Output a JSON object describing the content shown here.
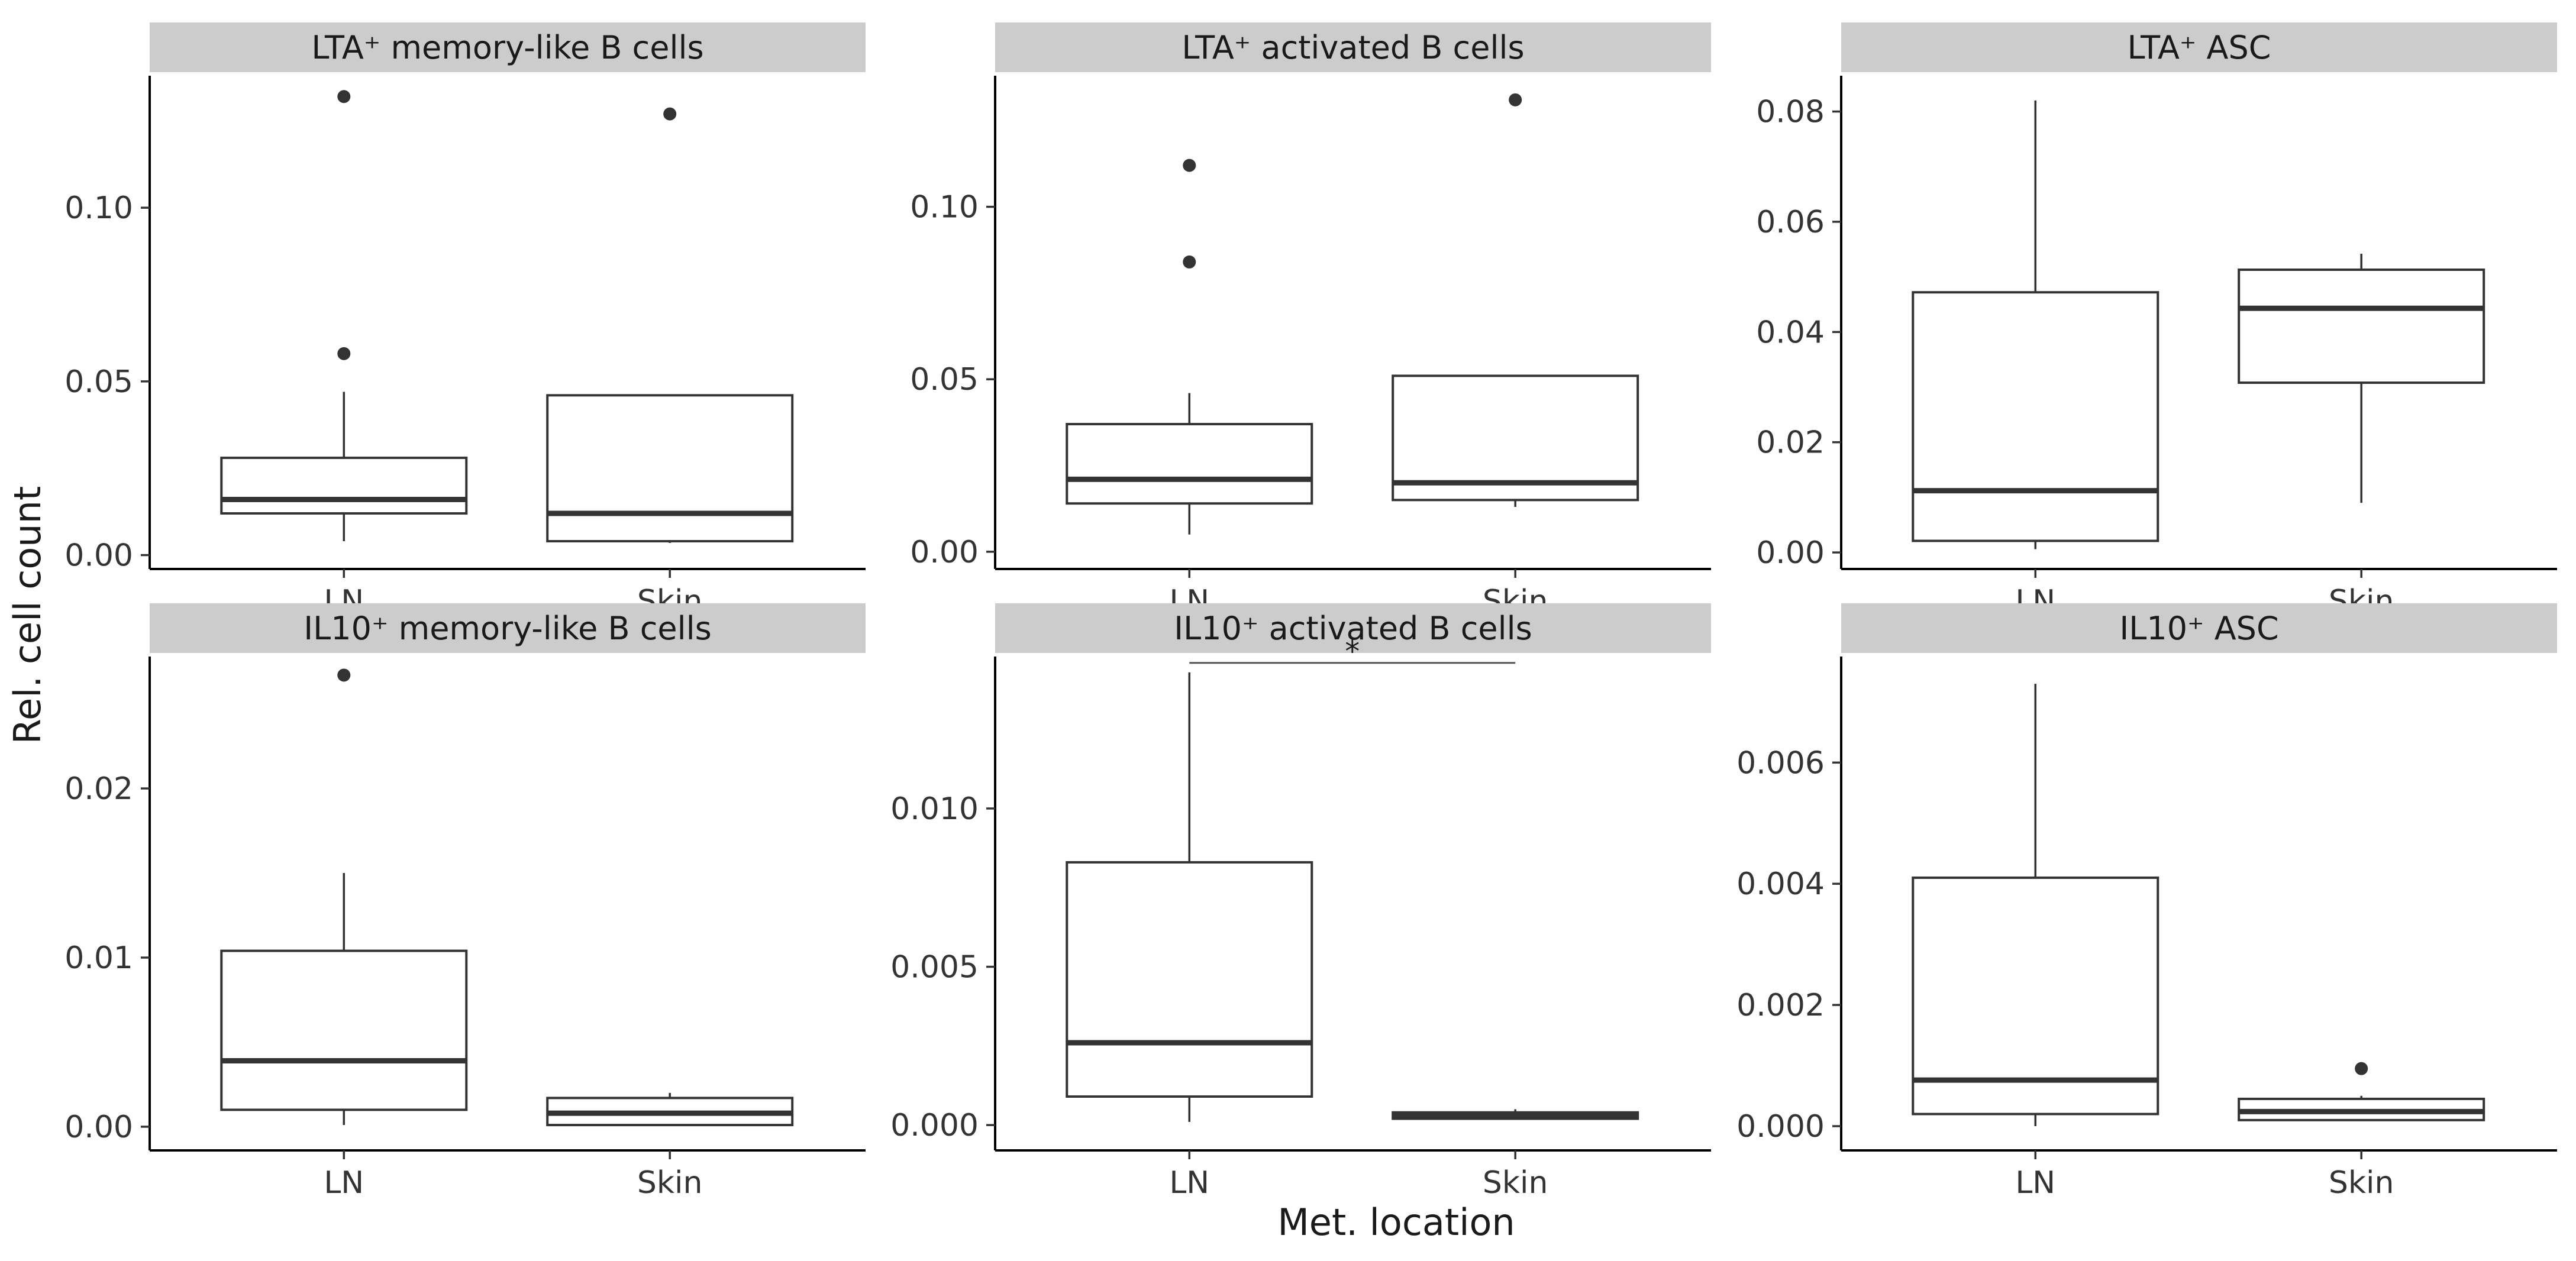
{
  "chart_data": {
    "type": "boxplot",
    "xlabel": "Met. location",
    "ylabel": "Rel. cell count",
    "categories": [
      "LN",
      "Skin"
    ],
    "panels": [
      {
        "title": "LTA⁺ memory-like B cells",
        "ylim": [
          -0.004,
          0.138
        ],
        "yticks": [
          0.0,
          0.05,
          0.1
        ],
        "ytick_labels": [
          "0.00",
          "0.05",
          "0.10"
        ],
        "boxes": [
          {
            "category": "LN",
            "whisker_low": 0.004,
            "q1": 0.012,
            "median": 0.016,
            "q3": 0.028,
            "whisker_high": 0.047,
            "outliers": [
              0.058,
              0.132
            ]
          },
          {
            "category": "Skin",
            "whisker_low": 0.0035,
            "q1": 0.004,
            "median": 0.012,
            "q3": 0.046,
            "whisker_high": 0.046,
            "outliers": [
              0.127
            ]
          }
        ]
      },
      {
        "title": "LTA⁺ activated B cells",
        "ylim": [
          -0.005,
          0.138
        ],
        "yticks": [
          0.0,
          0.05,
          0.1
        ],
        "ytick_labels": [
          "0.00",
          "0.05",
          "0.10"
        ],
        "boxes": [
          {
            "category": "LN",
            "whisker_low": 0.005,
            "q1": 0.014,
            "median": 0.021,
            "q3": 0.037,
            "whisker_high": 0.046,
            "outliers": [
              0.084,
              0.112
            ]
          },
          {
            "category": "Skin",
            "whisker_low": 0.013,
            "q1": 0.015,
            "median": 0.02,
            "q3": 0.051,
            "whisker_high": 0.051,
            "outliers": [
              0.131
            ]
          }
        ]
      },
      {
        "title": "LTA⁺ ASC",
        "ylim": [
          -0.003,
          0.0865
        ],
        "yticks": [
          0.0,
          0.02,
          0.04,
          0.06,
          0.08
        ],
        "ytick_labels": [
          "0.00",
          "0.02",
          "0.04",
          "0.06",
          "0.08"
        ],
        "boxes": [
          {
            "category": "LN",
            "whisker_low": 0.0006,
            "q1": 0.0021,
            "median": 0.0112,
            "q3": 0.0472,
            "whisker_high": 0.082,
            "outliers": []
          },
          {
            "category": "Skin",
            "whisker_low": 0.009,
            "q1": 0.0308,
            "median": 0.0443,
            "q3": 0.0513,
            "whisker_high": 0.0542,
            "outliers": []
          }
        ]
      },
      {
        "title": "IL10⁺ memory-like B cells",
        "ylim": [
          -0.0014,
          0.0278
        ],
        "yticks": [
          0.0,
          0.01,
          0.02
        ],
        "ytick_labels": [
          "0.00",
          "0.01",
          "0.02"
        ],
        "boxes": [
          {
            "category": "LN",
            "whisker_low": 0.0001,
            "q1": 0.001,
            "median": 0.0039,
            "q3": 0.0104,
            "whisker_high": 0.015,
            "outliers": [
              0.0267
            ]
          },
          {
            "category": "Skin",
            "whisker_low": 0.0001,
            "q1": 0.0001,
            "median": 0.0008,
            "q3": 0.0017,
            "whisker_high": 0.002,
            "outliers": []
          }
        ]
      },
      {
        "title": "IL10⁺ activated B cells",
        "ylim": [
          -0.0008,
          0.0148
        ],
        "yticks": [
          0.0,
          0.005,
          0.01
        ],
        "ytick_labels": [
          "0.000",
          "0.005",
          "0.010"
        ],
        "boxes": [
          {
            "category": "LN",
            "whisker_low": 0.0001,
            "q1": 0.0009,
            "median": 0.0026,
            "q3": 0.0083,
            "whisker_high": 0.0143,
            "outliers": []
          },
          {
            "category": "Skin",
            "whisker_low": 0.0002,
            "q1": 0.0002,
            "median": 0.0003,
            "q3": 0.0004,
            "whisker_high": 0.0005,
            "outliers": []
          }
        ],
        "significance": {
          "from": "LN",
          "to": "Skin",
          "y": 0.0146,
          "label": "*"
        }
      },
      {
        "title": "IL10⁺ ASC",
        "ylim": [
          -0.0004,
          0.00775
        ],
        "yticks": [
          0.0,
          0.002,
          0.004,
          0.006
        ],
        "ytick_labels": [
          "0.000",
          "0.002",
          "0.004",
          "0.006"
        ],
        "boxes": [
          {
            "category": "LN",
            "whisker_low": 0.0,
            "q1": 0.0002,
            "median": 0.00076,
            "q3": 0.0041,
            "whisker_high": 0.0073,
            "outliers": []
          },
          {
            "category": "Skin",
            "whisker_low": 0.0001,
            "q1": 0.0001,
            "median": 0.00024,
            "q3": 0.00045,
            "whisker_high": 0.0005,
            "outliers": [
              0.00095
            ]
          }
        ]
      }
    ]
  }
}
